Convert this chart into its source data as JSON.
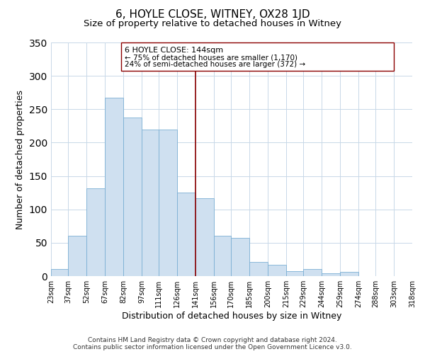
{
  "title": "6, HOYLE CLOSE, WITNEY, OX28 1JD",
  "subtitle": "Size of property relative to detached houses in Witney",
  "xlabel": "Distribution of detached houses by size in Witney",
  "ylabel": "Number of detached properties",
  "bar_left_edges": [
    23,
    37,
    52,
    67,
    82,
    97,
    111,
    126,
    141,
    156,
    170,
    185,
    200,
    215,
    229,
    244,
    259,
    274,
    288,
    303
  ],
  "bar_heights": [
    11,
    60,
    131,
    267,
    238,
    220,
    220,
    125,
    117,
    60,
    57,
    21,
    17,
    7,
    11,
    4,
    6,
    0,
    0,
    0
  ],
  "bar_widths": [
    14,
    15,
    15,
    15,
    15,
    14,
    15,
    15,
    15,
    14,
    15,
    15,
    15,
    14,
    15,
    15,
    15,
    14,
    15,
    15
  ],
  "tick_labels": [
    "23sqm",
    "37sqm",
    "52sqm",
    "67sqm",
    "82sqm",
    "97sqm",
    "111sqm",
    "126sqm",
    "141sqm",
    "156sqm",
    "170sqm",
    "185sqm",
    "200sqm",
    "215sqm",
    "229sqm",
    "244sqm",
    "259sqm",
    "274sqm",
    "288sqm",
    "303sqm",
    "318sqm"
  ],
  "bar_color": "#cfe0f0",
  "bar_edge_color": "#7bafd4",
  "vline_x": 141,
  "vline_color": "#8b0000",
  "ylim": [
    0,
    350
  ],
  "xlim_left": 23,
  "xlim_right": 318,
  "annotation_title": "6 HOYLE CLOSE: 144sqm",
  "annotation_line1": "← 75% of detached houses are smaller (1,170)",
  "annotation_line2": "24% of semi-detached houses are larger (372) →",
  "annotation_box_color": "#ffffff",
  "annotation_box_edge": "#8b0000",
  "footer1": "Contains HM Land Registry data © Crown copyright and database right 2024.",
  "footer2": "Contains public sector information licensed under the Open Government Licence v3.0.",
  "background_color": "#ffffff",
  "grid_color": "#c8d8e8",
  "title_fontsize": 11,
  "subtitle_fontsize": 9.5,
  "axis_label_fontsize": 9,
  "tick_fontsize": 7,
  "footer_fontsize": 6.5,
  "annotation_title_fontsize": 8,
  "annotation_text_fontsize": 7.5
}
